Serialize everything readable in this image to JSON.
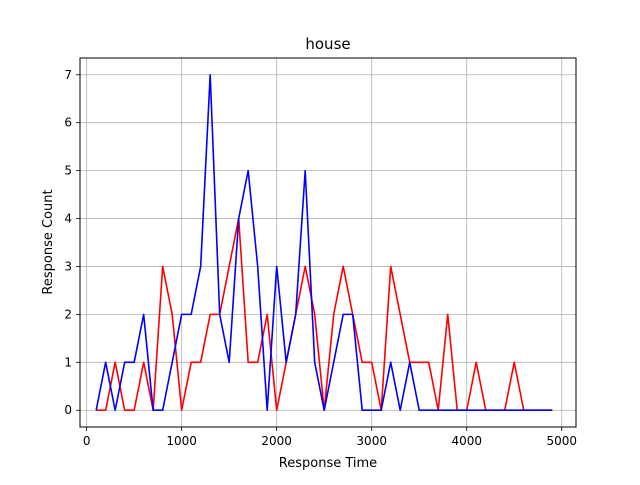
{
  "chart_data": {
    "type": "line",
    "title": "house",
    "xlabel": "Response Time",
    "ylabel": "Response Count",
    "xlim": [
      -70,
      5150
    ],
    "ylim": [
      -0.35,
      7.35
    ],
    "xticks": [
      0,
      1000,
      2000,
      3000,
      4000,
      5000
    ],
    "yticks": [
      0,
      1,
      2,
      3,
      4,
      5,
      6,
      7
    ],
    "grid": true,
    "legend": "none",
    "x": [
      100,
      200,
      300,
      400,
      500,
      600,
      700,
      800,
      900,
      1000,
      1100,
      1200,
      1300,
      1400,
      1500,
      1600,
      1700,
      1800,
      1900,
      2000,
      2100,
      2200,
      2300,
      2400,
      2500,
      2600,
      2700,
      2800,
      2900,
      3000,
      3100,
      3200,
      3300,
      3400,
      3500,
      3600,
      3700,
      3800,
      3900,
      4000,
      4100,
      4200,
      4300,
      4400,
      4500,
      4600,
      4700,
      4800,
      4900
    ],
    "series": [
      {
        "color": "#ff0000",
        "values": [
          0,
          0,
          1,
          0,
          0,
          1,
          0,
          3,
          2,
          0,
          1,
          1,
          2,
          2,
          3,
          4,
          1,
          1,
          2,
          0,
          1,
          2,
          3,
          2,
          0,
          2,
          3,
          2,
          1,
          1,
          0,
          3,
          2,
          1,
          1,
          1,
          0,
          2,
          0,
          0,
          1,
          0,
          0,
          0,
          1,
          0,
          0,
          0,
          0
        ]
      },
      {
        "color": "#0000ff",
        "values": [
          0,
          1,
          0,
          1,
          1,
          2,
          0,
          0,
          1,
          2,
          2,
          3,
          7,
          2,
          1,
          4,
          5,
          3,
          0,
          3,
          1,
          2,
          5,
          1,
          0,
          1,
          2,
          2,
          0,
          0,
          0,
          1,
          0,
          1,
          0,
          0,
          0,
          0,
          0,
          0,
          0,
          0,
          0,
          0,
          0,
          0,
          0,
          0,
          0
        ]
      }
    ]
  }
}
